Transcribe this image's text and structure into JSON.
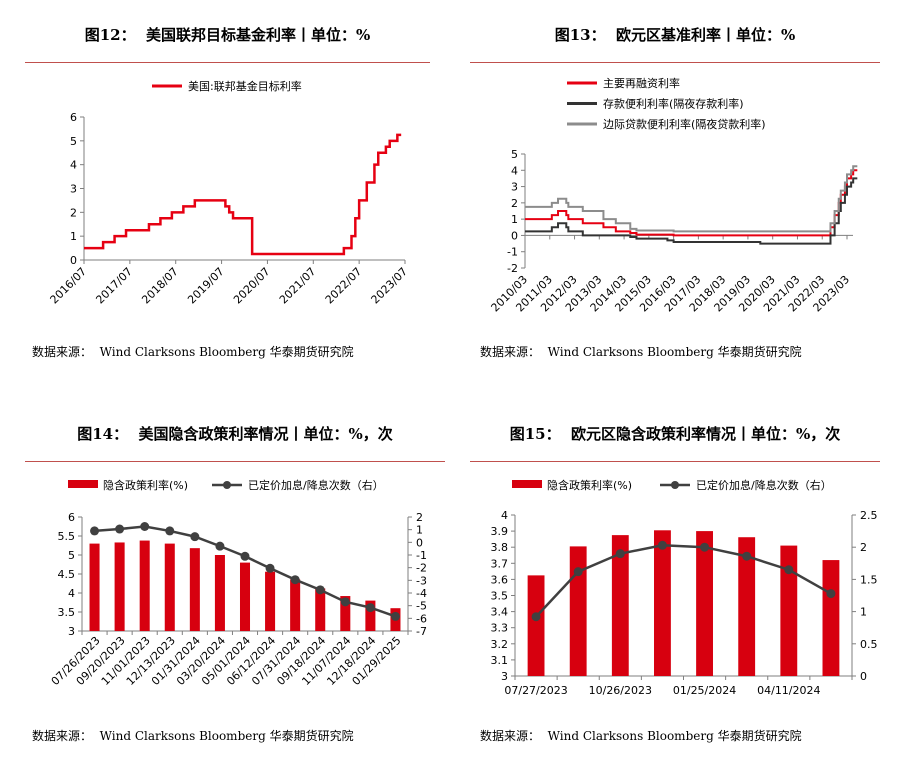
{
  "panels": [
    {
      "title": "图12：  美国联邦目标基金利率丨单位：%",
      "source": "数据来源：  Wind Clarksons Bloomberg 华泰期货研究院"
    },
    {
      "title": "图13：  欧元区基准利率丨单位：%",
      "source": "数据来源：  Wind Clarksons Bloomberg 华泰期货研究院"
    },
    {
      "title": "图14：  美国隐含政策利率情况丨单位：%，次",
      "source": "数据来源：  Wind Clarksons Bloomberg 华泰期货研究院"
    },
    {
      "title": "图15：  欧元区隐含政策利率情况丨单位：%，次",
      "source": "数据来源：  Wind Clarksons Bloomberg 华泰期货研究院"
    }
  ],
  "chart_data": [
    {
      "type": "line",
      "step": true,
      "legend_position": "top",
      "xlim": [
        "2016/07",
        "2023/07"
      ],
      "ylim": [
        0,
        6
      ],
      "x_ticks": [
        "2016/07",
        "2017/07",
        "2018/07",
        "2019/07",
        "2020/07",
        "2021/07",
        "2022/07",
        "2023/07"
      ],
      "y_ticks": [
        "0",
        "1",
        "2",
        "3",
        "4",
        "5",
        "6"
      ],
      "series": [
        {
          "name": "美国:联邦基金目标利率",
          "color": "#e60012",
          "end": "2023/06",
          "points": [
            [
              "2016/07",
              0.5
            ],
            [
              "2016/12",
              0.75
            ],
            [
              "2017/03",
              1.0
            ],
            [
              "2017/06",
              1.25
            ],
            [
              "2017/12",
              1.5
            ],
            [
              "2018/03",
              1.75
            ],
            [
              "2018/06",
              2.0
            ],
            [
              "2018/09",
              2.25
            ],
            [
              "2018/12",
              2.5
            ],
            [
              "2019/08",
              2.25
            ],
            [
              "2019/09",
              2.0
            ],
            [
              "2019/10",
              1.75
            ],
            [
              "2020/03",
              1.25
            ],
            [
              "2020/03",
              0.25
            ],
            [
              "2022/03",
              0.5
            ],
            [
              "2022/05",
              1.0
            ],
            [
              "2022/06",
              1.75
            ],
            [
              "2022/07",
              2.5
            ],
            [
              "2022/09",
              3.25
            ],
            [
              "2022/11",
              4.0
            ],
            [
              "2022/12",
              4.5
            ],
            [
              "2023/02",
              4.75
            ],
            [
              "2023/03",
              5.0
            ],
            [
              "2023/05",
              5.25
            ]
          ]
        }
      ]
    },
    {
      "type": "line",
      "step": true,
      "legend_position": "top",
      "xlim": [
        "2010/03",
        "2023/03"
      ],
      "ylim": [
        -2,
        5
      ],
      "x_ticks": [
        "2010/03",
        "2011/03",
        "2012/03",
        "2013/03",
        "2014/03",
        "2015/03",
        "2016/03",
        "2017/03",
        "2018/03",
        "2019/03",
        "2020/03",
        "2021/03",
        "2022/03",
        "2023/03"
      ],
      "y_ticks": [
        "-2",
        "-1",
        "0",
        "1",
        "2",
        "3",
        "4",
        "5"
      ],
      "series": [
        {
          "name": "主要再融资利率",
          "color": "#e60012",
          "end": "2023/08",
          "points": [
            [
              "2010/03",
              1.0
            ],
            [
              "2011/04",
              1.25
            ],
            [
              "2011/07",
              1.5
            ],
            [
              "2011/11",
              1.25
            ],
            [
              "2011/12",
              1.0
            ],
            [
              "2012/07",
              0.75
            ],
            [
              "2013/05",
              0.5
            ],
            [
              "2013/11",
              0.25
            ],
            [
              "2014/06",
              0.15
            ],
            [
              "2014/09",
              0.05
            ],
            [
              "2016/03",
              0.0
            ],
            [
              "2022/07",
              0.5
            ],
            [
              "2022/09",
              1.25
            ],
            [
              "2022/11",
              2.0
            ],
            [
              "2022/12",
              2.5
            ],
            [
              "2023/02",
              3.0
            ],
            [
              "2023/03",
              3.5
            ],
            [
              "2023/05",
              3.75
            ],
            [
              "2023/06",
              4.0
            ]
          ]
        },
        {
          "name": "存款便利利率(隔夜存款利率)",
          "color": "#333333",
          "end": "2023/08",
          "points": [
            [
              "2010/03",
              0.25
            ],
            [
              "2011/04",
              0.5
            ],
            [
              "2011/07",
              0.75
            ],
            [
              "2011/11",
              0.5
            ],
            [
              "2011/12",
              0.25
            ],
            [
              "2012/07",
              0.0
            ],
            [
              "2014/06",
              -0.1
            ],
            [
              "2014/09",
              -0.2
            ],
            [
              "2015/12",
              -0.3
            ],
            [
              "2016/03",
              -0.4
            ],
            [
              "2019/09",
              -0.5
            ],
            [
              "2022/07",
              0.0
            ],
            [
              "2022/09",
              0.75
            ],
            [
              "2022/11",
              1.5
            ],
            [
              "2022/12",
              2.0
            ],
            [
              "2023/02",
              2.5
            ],
            [
              "2023/03",
              3.0
            ],
            [
              "2023/05",
              3.25
            ],
            [
              "2023/06",
              3.5
            ]
          ]
        },
        {
          "name": "边际贷款便利利率(隔夜贷款利率)",
          "color": "#8c8c8c",
          "end": "2023/08",
          "points": [
            [
              "2010/03",
              1.75
            ],
            [
              "2011/04",
              2.0
            ],
            [
              "2011/07",
              2.25
            ],
            [
              "2011/11",
              2.0
            ],
            [
              "2011/12",
              1.75
            ],
            [
              "2012/07",
              1.5
            ],
            [
              "2013/05",
              1.0
            ],
            [
              "2013/11",
              0.75
            ],
            [
              "2014/06",
              0.4
            ],
            [
              "2014/09",
              0.3
            ],
            [
              "2016/03",
              0.25
            ],
            [
              "2022/07",
              0.75
            ],
            [
              "2022/09",
              1.5
            ],
            [
              "2022/11",
              2.25
            ],
            [
              "2022/12",
              2.75
            ],
            [
              "2023/02",
              3.25
            ],
            [
              "2023/03",
              3.75
            ],
            [
              "2023/05",
              4.0
            ],
            [
              "2023/06",
              4.25
            ]
          ]
        }
      ]
    },
    {
      "type": "bar",
      "legend_position": "top",
      "categories": [
        "07/26/2023",
        "09/20/2023",
        "11/01/2023",
        "12/13/2023",
        "01/31/2024",
        "03/20/2024",
        "05/01/2024",
        "06/12/2024",
        "07/31/2024",
        "09/18/2024",
        "11/07/2024",
        "12/18/2024",
        "01/29/2025"
      ],
      "ylim": [
        3,
        6
      ],
      "y2lim": [
        -7,
        2
      ],
      "y_ticks": [
        "3",
        "3.5",
        "4",
        "4.5",
        "5",
        "5.5",
        "6"
      ],
      "y2_ticks": [
        "-7",
        "-6",
        "-5",
        "-4",
        "-3",
        "-2",
        "-1",
        "0",
        "1",
        "2"
      ],
      "series": [
        {
          "name": "隐含政策利率(%)",
          "type": "bar",
          "axis": "left",
          "color": "#d7000f",
          "values": [
            5.3,
            5.33,
            5.38,
            5.3,
            5.18,
            5.0,
            4.8,
            4.56,
            4.36,
            4.12,
            3.92,
            3.8,
            3.6
          ]
        },
        {
          "name": "已定价加息/降息次数（右）",
          "type": "line",
          "axis": "right",
          "color": "#404040",
          "values": [
            0.9,
            1.05,
            1.25,
            0.9,
            0.45,
            -0.3,
            -1.1,
            -2.05,
            -2.95,
            -3.75,
            -4.7,
            -5.15,
            -5.85
          ]
        }
      ]
    },
    {
      "type": "bar",
      "legend_position": "top",
      "categories": [
        "07/27/2023",
        "",
        "10/26/2023",
        "",
        "01/25/2024",
        "",
        "04/11/2024",
        ""
      ],
      "ylim": [
        3,
        4
      ],
      "y2lim": [
        0,
        2.5
      ],
      "y_ticks": [
        "3",
        "3.1",
        "3.2",
        "3.3",
        "3.4",
        "3.5",
        "3.6",
        "3.7",
        "3.8",
        "3.9",
        "4"
      ],
      "y2_ticks": [
        "0",
        "0.5",
        "1",
        "1.5",
        "2",
        "2.5"
      ],
      "series": [
        {
          "name": "隐含政策利率(%)",
          "type": "bar",
          "axis": "left",
          "color": "#d7000f",
          "values": [
            3.625,
            3.805,
            3.875,
            3.905,
            3.9,
            3.862,
            3.81,
            3.72
          ]
        },
        {
          "name": "已定价加息/降息次数（右）",
          "type": "line",
          "axis": "right",
          "color": "#404040",
          "values": [
            0.92,
            1.62,
            1.9,
            2.03,
            2.0,
            1.86,
            1.65,
            1.28
          ]
        }
      ]
    }
  ]
}
